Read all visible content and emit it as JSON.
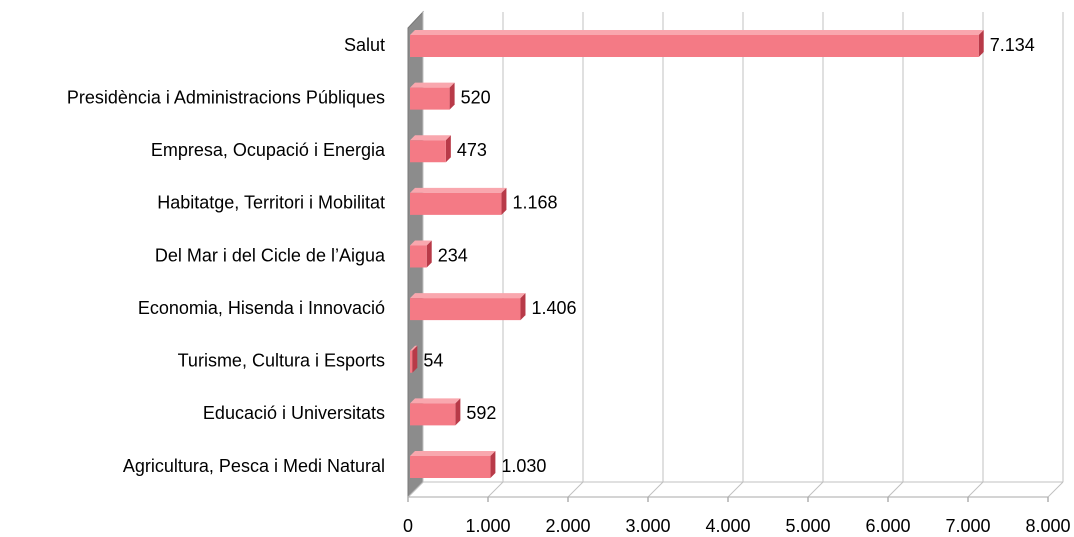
{
  "chart_data": {
    "type": "bar",
    "orientation": "horizontal",
    "categories": [
      "Salut",
      "Presidència i Administracions Públiques",
      "Empresa, Ocupació i Energia",
      "Habitatge, Territori i Mobilitat",
      "Del Mar i del Cicle de l’Aigua",
      "Economia, Hisenda i Innovació",
      "Turisme, Cultura i Esports",
      "Educació i Universitats",
      "Agricultura, Pesca i Medi Natural"
    ],
    "values": [
      7134,
      520,
      473,
      1168,
      234,
      1406,
      54,
      592,
      1030
    ],
    "value_labels": [
      "7.134",
      "520",
      "473",
      "1.168",
      "234",
      "1.406",
      "54",
      "592",
      "1.030"
    ],
    "color": "#f47a85",
    "xlim": [
      0,
      8000
    ],
    "xticks": [
      0,
      {
        "value": 1000,
        "label": "1.000"
      },
      {
        "value": 2000,
        "label": "2.000"
      },
      {
        "value": 3000,
        "label": "3.000"
      },
      {
        "value": 4000,
        "label": "4.000"
      },
      {
        "value": 5000,
        "label": "5.000"
      },
      {
        "value": 6000,
        "label": "6.000"
      },
      {
        "value": 7000,
        "label": "7.000"
      },
      {
        "value": 8000,
        "label": "8.000"
      }
    ],
    "grid": true
  }
}
